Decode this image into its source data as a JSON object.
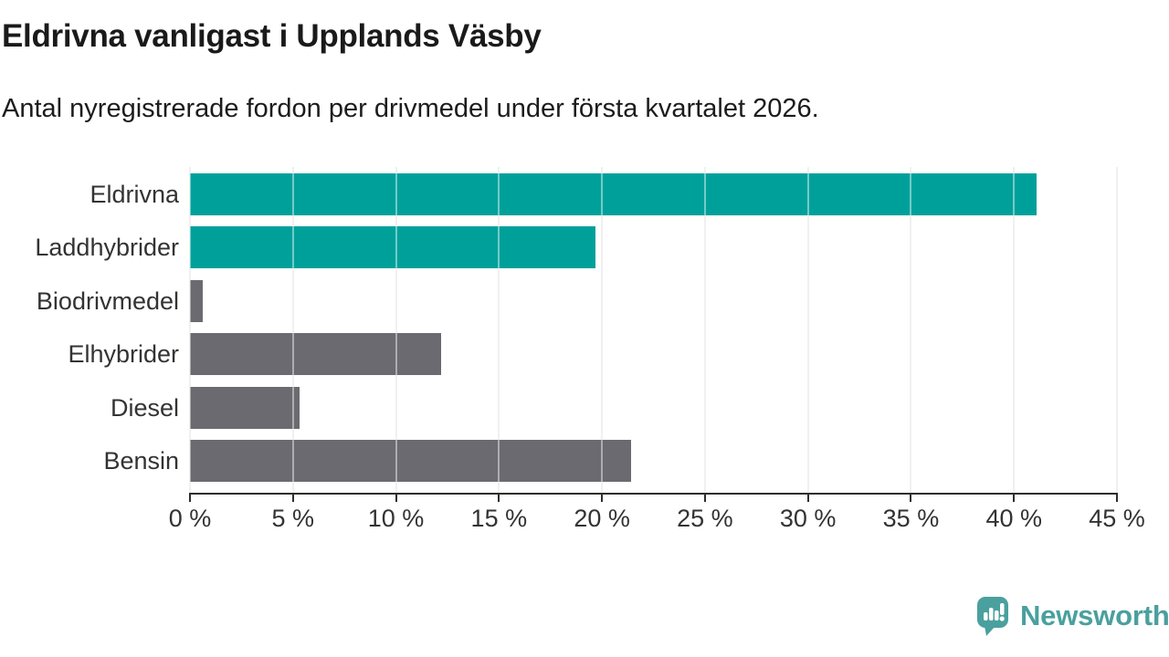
{
  "title": "Eldrivna vanligast i Upplands Väsby",
  "subtitle": "Antal nyregistrerade fordon per drivmedel under första kvartalet 2026.",
  "colors": {
    "teal": "#00a09a",
    "gray": "#6a6a70",
    "axis": "#2e2e2e",
    "grid": "#e3e3e3",
    "grid_over_bar": "rgba(255,255,255,0.45)",
    "text": "#333333",
    "logo": "#4aa09e"
  },
  "chart_data": {
    "type": "bar",
    "orientation": "horizontal",
    "title": "Eldrivna vanligast i Upplands Väsby",
    "subtitle": "Antal nyregistrerade fordon per drivmedel under första kvartalet 2026.",
    "categories": [
      "Eldrivna",
      "Laddhybrider",
      "Biodrivmedel",
      "Elhybrider",
      "Diesel",
      "Bensin"
    ],
    "values": [
      41.1,
      19.7,
      0.6,
      12.2,
      5.3,
      21.4
    ],
    "bar_colors": [
      "teal",
      "teal",
      "gray",
      "gray",
      "gray",
      "gray"
    ],
    "xlabel": "",
    "ylabel": "",
    "xlim": [
      0,
      45
    ],
    "x_ticks": [
      0,
      5,
      10,
      15,
      20,
      25,
      30,
      35,
      40,
      45
    ],
    "x_tick_suffix": " %",
    "grid": true,
    "legend": false
  },
  "logo": {
    "text": "Newsworthy",
    "icon": "newsworthy-speech-bubble-chart-icon"
  }
}
